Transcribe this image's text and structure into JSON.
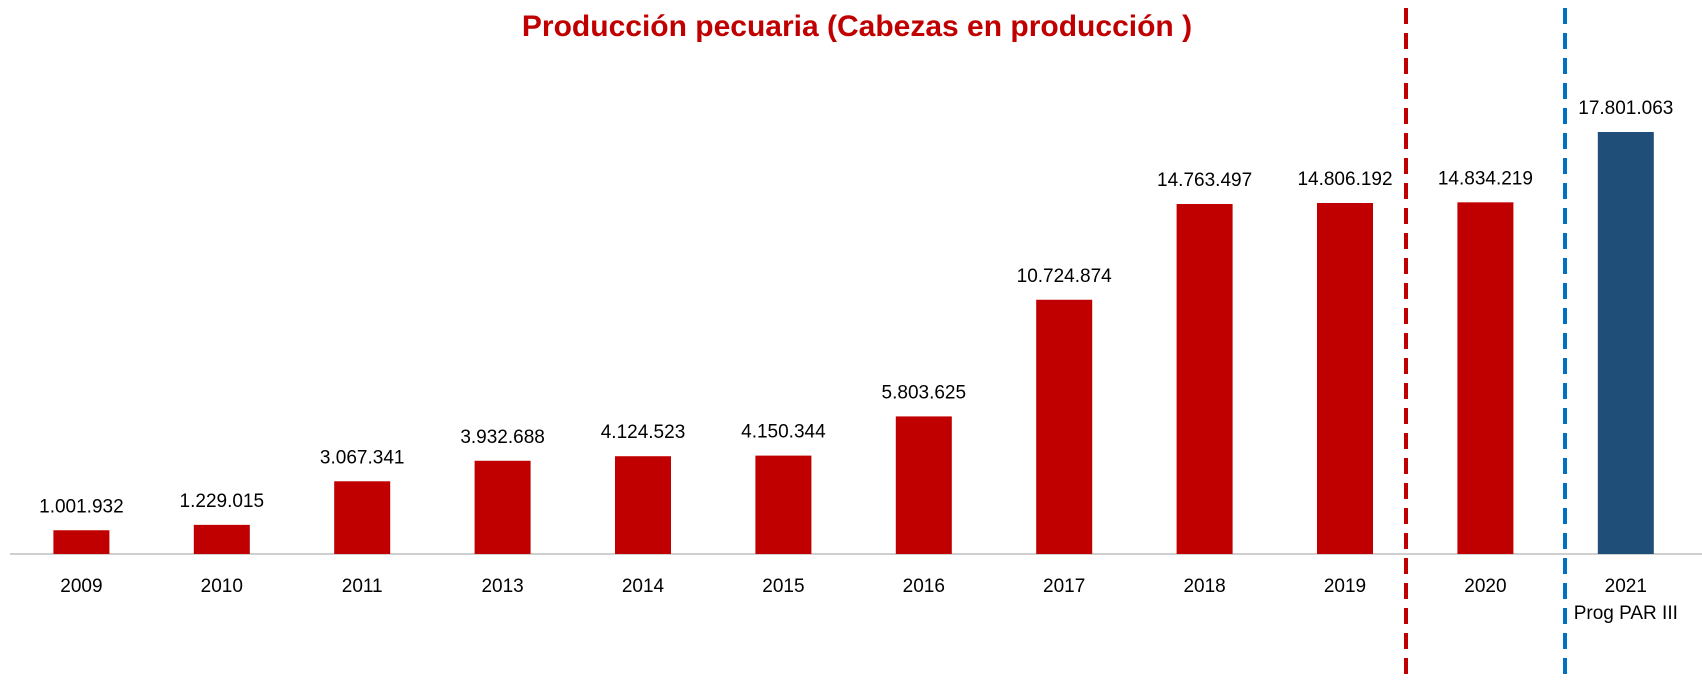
{
  "chart_data": {
    "type": "bar",
    "title": "Producción pecuaria (Cabezas en producción )",
    "categories": [
      "2009",
      "2010",
      "2011",
      "2013",
      "2014",
      "2015",
      "2016",
      "2017",
      "2018",
      "2019",
      "2020",
      "2021\nProg PAR III"
    ],
    "values": [
      1001932,
      1229015,
      3067341,
      3932688,
      4124523,
      4150344,
      5803625,
      10724874,
      14763497,
      14806192,
      14834219,
      17801063
    ],
    "value_labels": [
      "1.001.932",
      "1.229.015",
      "3.067.341",
      "3.932.688",
      "4.124.523",
      "4.150.344",
      "5.803.625",
      "10.724.874",
      "14.763.497",
      "14.806.192",
      "14.834.219",
      "17.801.063"
    ],
    "colors": [
      "#c00000",
      "#c00000",
      "#c00000",
      "#c00000",
      "#c00000",
      "#c00000",
      "#c00000",
      "#c00000",
      "#c00000",
      "#c00000",
      "#c00000",
      "#1f4e79"
    ]
  }
}
